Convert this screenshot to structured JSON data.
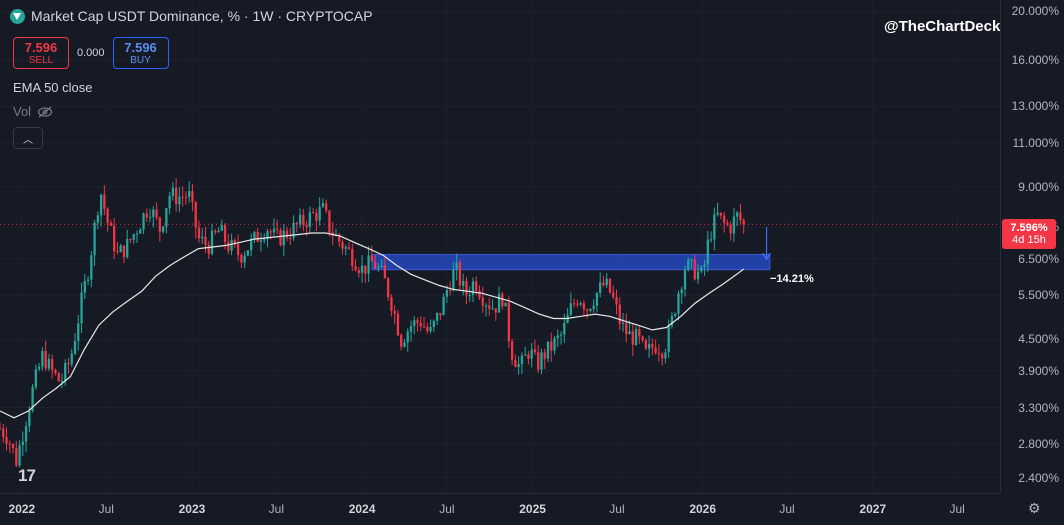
{
  "header": {
    "title": "Market Cap USDT Dominance, % · 1W · CRYPTOCAP",
    "sell_value": "7.596",
    "sell_label": "SELL",
    "spread": "0.000",
    "buy_value": "7.596",
    "buy_label": "BUY",
    "ema_label": "EMA 50 close",
    "vol_label": "Vol",
    "collapse_glyph": "︿"
  },
  "watermark": "@TheChartDeck",
  "tv_logo": "17",
  "colors": {
    "up": "#26A69A",
    "down": "#F23645",
    "ema": "#E8E8E8",
    "zone": "#2446B5",
    "arrow": "#3D6FF5"
  },
  "icons": {
    "logo": "usdt-logo-icon",
    "vol": "eye-off-icon",
    "collapse": "chevron-up-icon",
    "settings": "gear-icon"
  },
  "chart_data": {
    "type": "candlestick",
    "title": "Market Cap USDT Dominance, % · 1W · CRYPTOCAP",
    "y_scale": "log",
    "ylim": [
      2.3,
      20.5
    ],
    "y_ticks": [
      "20.000%",
      "16.000%",
      "13.000%",
      "11.000%",
      "9.000%",
      "7.500%",
      "6.500%",
      "5.500%",
      "4.500%",
      "3.900%",
      "3.300%",
      "2.800%",
      "2.400%"
    ],
    "x_ticks": [
      "2022",
      "Jul",
      "2023",
      "Jul",
      "2024",
      "Jul",
      "2025",
      "Jul",
      "2026",
      "Jul",
      "2027",
      "Jul"
    ],
    "x_range": [
      "2021-11-15",
      "2027-10-01"
    ],
    "last_price": 7.596,
    "last_price_label": "7.596%",
    "countdown": "4d 15h",
    "annotation": "−14.21%",
    "zone": {
      "low": 6.18,
      "high": 6.62,
      "from": "2024-01-22",
      "to": "2026-05-25"
    },
    "target_arrow": {
      "date": "2026-05-18",
      "from": 7.5,
      "to": 6.48
    },
    "series": [
      {
        "name": "EMA 50 close",
        "type": "line",
        "points": [
          [
            "2021-11-15",
            3.25
          ],
          [
            "2021-12-15",
            3.15
          ],
          [
            "2022-01-15",
            3.25
          ],
          [
            "2022-02-15",
            3.45
          ],
          [
            "2022-03-15",
            3.6
          ],
          [
            "2022-04-15",
            3.8
          ],
          [
            "2022-05-15",
            4.3
          ],
          [
            "2022-06-15",
            4.8
          ],
          [
            "2022-07-15",
            5.1
          ],
          [
            "2022-08-15",
            5.35
          ],
          [
            "2022-09-15",
            5.6
          ],
          [
            "2022-10-15",
            6.0
          ],
          [
            "2022-11-15",
            6.3
          ],
          [
            "2022-12-15",
            6.55
          ],
          [
            "2023-01-15",
            6.8
          ],
          [
            "2023-02-15",
            6.85
          ],
          [
            "2023-03-15",
            6.9
          ],
          [
            "2023-04-15",
            7.0
          ],
          [
            "2023-05-15",
            7.1
          ],
          [
            "2023-06-15",
            7.15
          ],
          [
            "2023-07-15",
            7.2
          ],
          [
            "2023-08-15",
            7.25
          ],
          [
            "2023-09-15",
            7.3
          ],
          [
            "2023-10-15",
            7.3
          ],
          [
            "2023-11-15",
            7.2
          ],
          [
            "2023-12-15",
            7.0
          ],
          [
            "2024-01-15",
            6.8
          ],
          [
            "2024-02-15",
            6.6
          ],
          [
            "2024-03-15",
            6.3
          ],
          [
            "2024-04-15",
            6.05
          ],
          [
            "2024-05-15",
            5.9
          ],
          [
            "2024-06-15",
            5.75
          ],
          [
            "2024-07-15",
            5.65
          ],
          [
            "2024-08-15",
            5.6
          ],
          [
            "2024-09-15",
            5.55
          ],
          [
            "2024-10-15",
            5.45
          ],
          [
            "2024-11-15",
            5.35
          ],
          [
            "2024-12-15",
            5.2
          ],
          [
            "2025-01-15",
            5.05
          ],
          [
            "2025-02-15",
            4.95
          ],
          [
            "2025-03-15",
            4.95
          ],
          [
            "2025-04-15",
            5.0
          ],
          [
            "2025-05-15",
            5.05
          ],
          [
            "2025-06-15",
            5.0
          ],
          [
            "2025-07-15",
            4.9
          ],
          [
            "2025-08-15",
            4.8
          ],
          [
            "2025-09-15",
            4.7
          ],
          [
            "2025-10-15",
            4.75
          ],
          [
            "2025-11-15",
            5.0
          ],
          [
            "2025-12-15",
            5.3
          ],
          [
            "2026-01-15",
            5.55
          ],
          [
            "2026-02-15",
            5.8
          ],
          [
            "2026-03-15",
            6.05
          ],
          [
            "2026-03-30",
            6.2
          ]
        ]
      },
      {
        "name": "USDT Dominance",
        "type": "candlestick",
        "closes": [
          [
            "2021-11-15",
            3.0
          ],
          [
            "2021-12-01",
            2.9
          ],
          [
            "2021-12-20",
            2.6
          ],
          [
            "2022-01-05",
            3.0
          ],
          [
            "2022-01-25",
            3.6
          ],
          [
            "2022-02-15",
            4.2
          ],
          [
            "2022-03-05",
            3.9
          ],
          [
            "2022-03-25",
            3.7
          ],
          [
            "2022-04-15",
            4.1
          ],
          [
            "2022-05-10",
            5.4
          ],
          [
            "2022-05-25",
            6.3
          ],
          [
            "2022-06-18",
            8.9
          ],
          [
            "2022-07-05",
            7.6
          ],
          [
            "2022-07-25",
            6.6
          ],
          [
            "2022-08-15",
            6.9
          ],
          [
            "2022-09-10",
            7.6
          ],
          [
            "2022-10-01",
            8.3
          ],
          [
            "2022-10-25",
            7.4
          ],
          [
            "2022-11-12",
            8.7
          ],
          [
            "2022-12-01",
            8.6
          ],
          [
            "2022-12-25",
            8.7
          ],
          [
            "2023-01-15",
            7.1
          ],
          [
            "2023-02-05",
            6.9
          ],
          [
            "2023-03-01",
            7.4
          ],
          [
            "2023-03-20",
            6.9
          ],
          [
            "2023-04-15",
            6.6
          ],
          [
            "2023-05-10",
            7.0
          ],
          [
            "2023-06-10",
            7.5
          ],
          [
            "2023-07-01",
            7.1
          ],
          [
            "2023-07-25",
            7.3
          ],
          [
            "2023-08-20",
            7.6
          ],
          [
            "2023-09-15",
            7.9
          ],
          [
            "2023-10-10",
            8.1
          ],
          [
            "2023-10-25",
            7.4
          ],
          [
            "2023-11-15",
            7.0
          ],
          [
            "2023-12-10",
            6.6
          ],
          [
            "2024-01-01",
            6.2
          ],
          [
            "2024-01-25",
            6.4
          ],
          [
            "2024-02-15",
            6.0
          ],
          [
            "2024-03-05",
            5.3
          ],
          [
            "2024-03-25",
            4.5
          ],
          [
            "2024-04-15",
            4.8
          ],
          [
            "2024-05-05",
            4.9
          ],
          [
            "2024-05-25",
            4.6
          ],
          [
            "2024-06-20",
            5.2
          ],
          [
            "2024-07-05",
            5.8
          ],
          [
            "2024-07-20",
            6.2
          ],
          [
            "2024-08-10",
            5.5
          ],
          [
            "2024-08-30",
            5.9
          ],
          [
            "2024-09-20",
            5.4
          ],
          [
            "2024-10-10",
            5.2
          ],
          [
            "2024-10-30",
            5.5
          ],
          [
            "2024-11-15",
            4.3
          ],
          [
            "2024-12-05",
            3.95
          ],
          [
            "2024-12-25",
            4.3
          ],
          [
            "2025-01-10",
            4.0
          ],
          [
            "2025-01-25",
            4.2
          ],
          [
            "2025-02-15",
            4.4
          ],
          [
            "2025-03-05",
            4.6
          ],
          [
            "2025-03-25",
            5.2
          ],
          [
            "2025-04-10",
            5.5
          ],
          [
            "2025-04-28",
            5.2
          ],
          [
            "2025-05-15",
            5.5
          ],
          [
            "2025-06-05",
            5.8
          ],
          [
            "2025-06-20",
            5.5
          ],
          [
            "2025-07-10",
            4.8
          ],
          [
            "2025-07-25",
            4.6
          ],
          [
            "2025-08-15",
            4.5
          ],
          [
            "2025-09-01",
            4.2
          ],
          [
            "2025-09-20",
            4.4
          ],
          [
            "2025-10-10",
            4.3
          ],
          [
            "2025-10-25",
            4.8
          ],
          [
            "2025-11-10",
            5.6
          ],
          [
            "2025-11-25",
            6.3
          ],
          [
            "2025-12-10",
            6.2
          ],
          [
            "2026-01-01",
            6.0
          ],
          [
            "2026-01-15",
            7.2
          ],
          [
            "2026-02-01",
            7.9
          ],
          [
            "2026-02-15",
            7.6
          ],
          [
            "2026-03-01",
            7.5
          ],
          [
            "2026-03-15",
            7.9
          ],
          [
            "2026-03-30",
            7.596
          ]
        ]
      }
    ]
  }
}
